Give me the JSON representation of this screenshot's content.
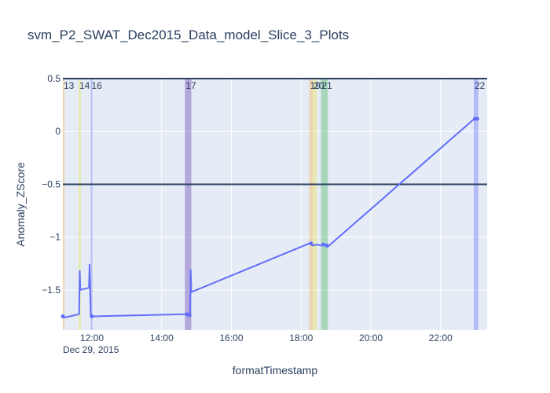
{
  "chart_data": {
    "type": "line",
    "title": "svm_P2_SWAT_Dec2015_Data_model_Slice_3_Plots",
    "xlabel": "formatTimestamp",
    "ylabel": "Anomaly_ZScore",
    "x_tick_labels": [
      "12:00",
      "14:00",
      "16:00",
      "18:00",
      "20:00",
      "22:00"
    ],
    "x_date_label": "Dec 29, 2015",
    "y_tick_labels": [
      "0.5",
      "0",
      "−0.5",
      "−1",
      "−1.5"
    ],
    "xlim": [
      "2015-12-29 11:10",
      "2015-12-29 23:20"
    ],
    "ylim": [
      -1.88,
      0.5
    ],
    "grid": true,
    "threshold_lines": [
      0.5,
      -0.5
    ],
    "colors": {
      "plot_bg": "#e5ecf6",
      "line": "#636efa",
      "threshold": "#2a3f5f",
      "title": "#2a3f5f",
      "axis_text": "#2a3f5f"
    },
    "anomaly_regions": [
      {
        "label": "13",
        "start": "2015-12-29 11:10",
        "end": "2015-12-29 11:13",
        "color": "#f2c27a",
        "opacity": 0.55
      },
      {
        "label": "14",
        "start": "2015-12-29 11:37",
        "end": "2015-12-29 11:41",
        "color": "#e8ea7a",
        "opacity": 0.55
      },
      {
        "label": "16",
        "start": "2015-12-29 11:58",
        "end": "2015-12-29 12:01",
        "color": "#8c96f7",
        "opacity": 0.55
      },
      {
        "label": "17",
        "start": "2015-12-29 14:40",
        "end": "2015-12-29 14:51",
        "color": "#8b6fc4",
        "opacity": 0.55
      },
      {
        "label": "19",
        "start": "2015-12-29 18:14",
        "end": "2015-12-29 18:20",
        "color": "#f2c27a",
        "opacity": 0.55
      },
      {
        "label": "20",
        "start": "2015-12-29 18:20",
        "end": "2015-12-29 18:27",
        "color": "#e8ea7a",
        "opacity": 0.55
      },
      {
        "label": "21",
        "start": "2015-12-29 18:34",
        "end": "2015-12-29 18:46",
        "color": "#79c48a",
        "opacity": 0.55
      },
      {
        "label": "22",
        "start": "2015-12-29 22:57",
        "end": "2015-12-29 23:05",
        "color": "#8c96f7",
        "opacity": 0.55
      }
    ],
    "series": [
      {
        "points": [
          [
            "2015-12-29 11:10",
            -1.75
          ],
          [
            "2015-12-29 11:13",
            -1.76
          ],
          [
            "2015-12-29 11:38",
            -1.73
          ],
          [
            "2015-12-29 11:39",
            -1.32
          ],
          [
            "2015-12-29 11:40",
            -1.5
          ],
          [
            "2015-12-29 11:55",
            -1.48
          ],
          [
            "2015-12-29 11:56",
            -1.26
          ],
          [
            "2015-12-29 11:58",
            -1.75
          ],
          [
            "2015-12-29 12:01",
            -1.75
          ],
          [
            "2015-12-29 14:42",
            -1.73
          ],
          [
            "2015-12-29 14:49",
            -1.74
          ],
          [
            "2015-12-29 14:50",
            -1.31
          ],
          [
            "2015-12-29 14:51",
            -1.52
          ],
          [
            "2015-12-29 18:14",
            -1.06
          ],
          [
            "2015-12-29 18:20",
            -1.08
          ],
          [
            "2015-12-29 18:27",
            -1.07
          ],
          [
            "2015-12-29 18:34",
            -1.08
          ],
          [
            "2015-12-29 18:40",
            -1.07
          ],
          [
            "2015-12-29 18:46",
            -1.09
          ],
          [
            "2015-12-29 22:58",
            0.12
          ],
          [
            "2015-12-29 23:04",
            0.11
          ]
        ]
      }
    ],
    "marker_points": [
      [
        "2015-12-29 11:10",
        -1.75
      ],
      [
        "2015-12-29 12:00",
        -1.75
      ],
      [
        "2015-12-29 14:44",
        -1.73
      ],
      [
        "2015-12-29 14:48",
        -1.74
      ],
      [
        "2015-12-29 18:17",
        -1.06
      ],
      [
        "2015-12-29 18:38",
        -1.07
      ],
      [
        "2015-12-29 18:44",
        -1.08
      ],
      [
        "2015-12-29 22:59",
        0.12
      ],
      [
        "2015-12-29 23:03",
        0.12
      ]
    ]
  }
}
